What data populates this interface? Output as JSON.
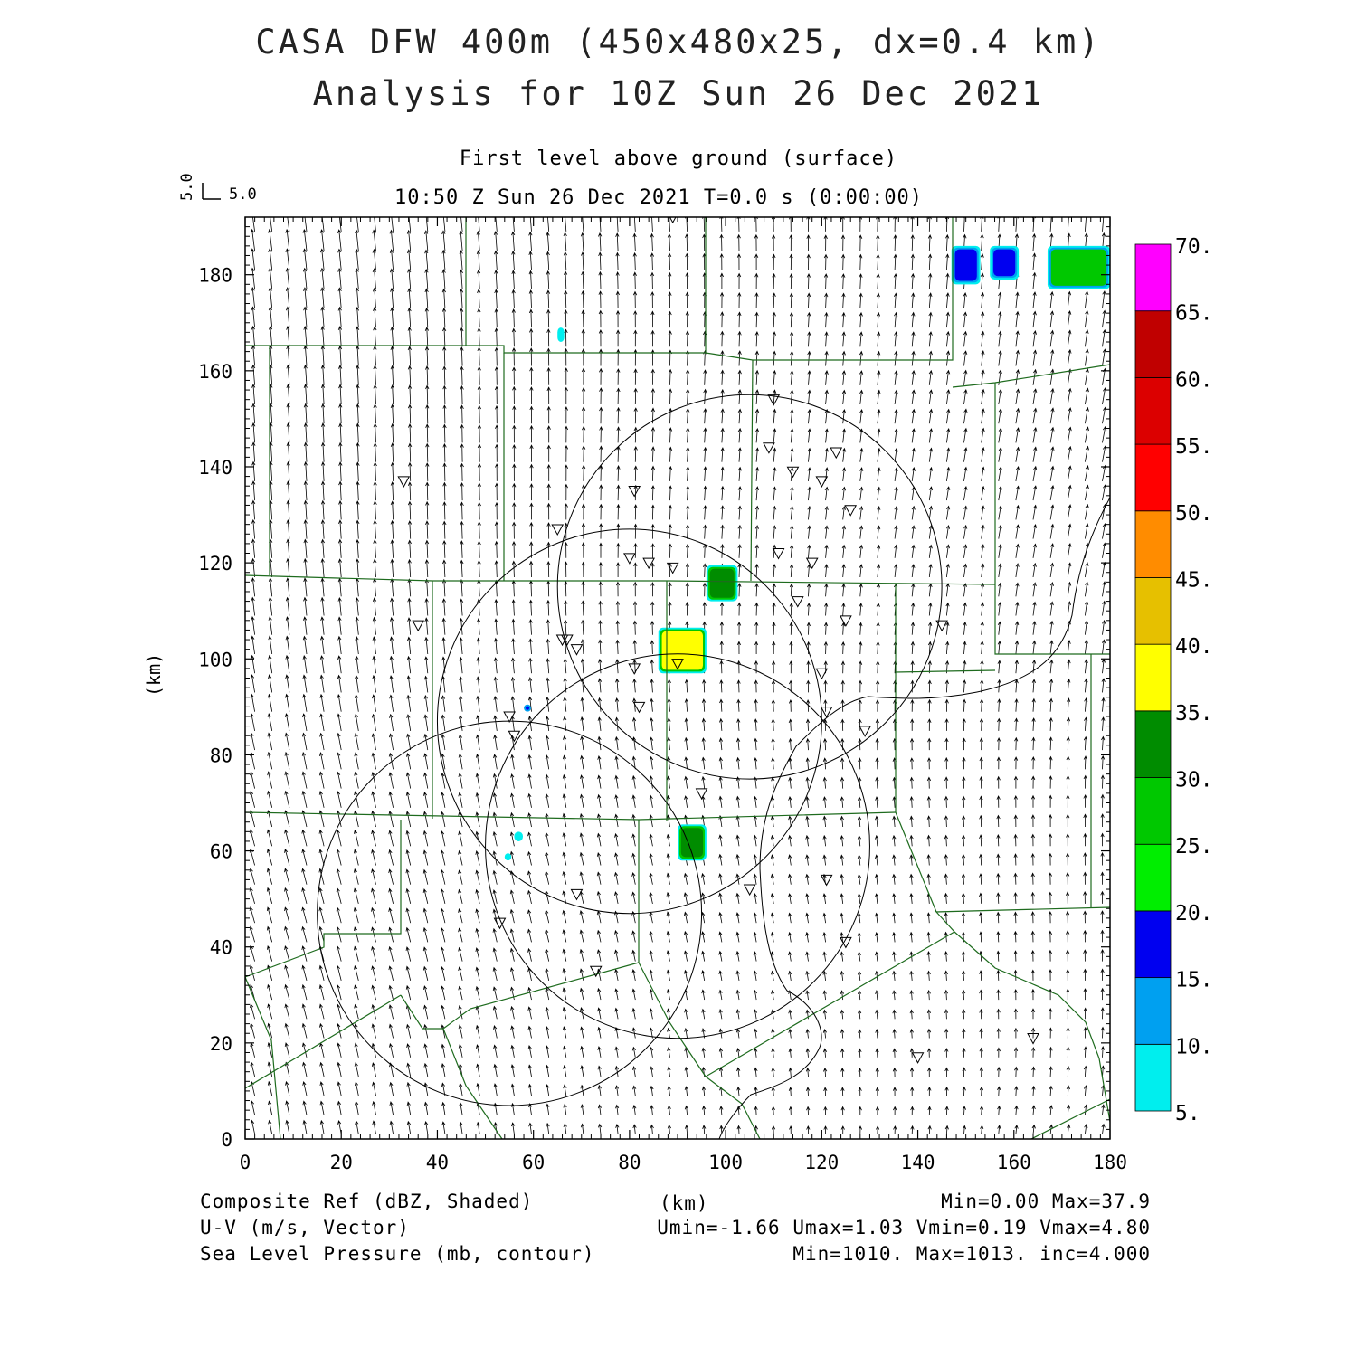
{
  "title": {
    "line1": "CASA DFW 400m (450x480x25, dx=0.4 km)",
    "line2": "Analysis for 10Z Sun 26 Dec 2021"
  },
  "subtitle": "First level above ground (surface)",
  "valid_time": "10:50 Z Sun 26 Dec 2021    T=0.0 s (0:00:00)",
  "reference_vector": {
    "u_label": "5.0",
    "v_label": "5.0"
  },
  "axes": {
    "xlabel": "(km)",
    "ylabel": "(km)",
    "xlim": [
      0,
      180
    ],
    "ylim": [
      0,
      192
    ],
    "x_ticks": [
      "0",
      "20",
      "40",
      "60",
      "80",
      "100",
      "120",
      "140",
      "160",
      "180"
    ],
    "y_ticks": [
      "0",
      "20",
      "40",
      "60",
      "80",
      "100",
      "120",
      "140",
      "160",
      "180"
    ]
  },
  "colorbar": {
    "labels": [
      "5.",
      "10.",
      "15.",
      "20.",
      "25.",
      "30.",
      "35.",
      "40.",
      "45.",
      "50.",
      "55.",
      "60.",
      "65.",
      "70."
    ],
    "colors": [
      "#00eeee",
      "#00a0f0",
      "#0000f0",
      "#00ee00",
      "#00c800",
      "#008c00",
      "#ffff00",
      "#e6c000",
      "#ff8c00",
      "#ff0000",
      "#dc0000",
      "#c00000",
      "#ff00ff"
    ]
  },
  "footer": {
    "left": [
      "Composite Ref (dBZ, Shaded)",
      "U-V (m/s, Vector)",
      "Sea Level Pressure (mb, contour)"
    ],
    "center": "(km)",
    "right": [
      "Min=0.00 Max=37.9",
      "Umin=-1.66 Umax=1.03 Vmin=0.19 Vmax=4.80",
      "Min=1010. Max=1013. inc=4.000"
    ]
  },
  "map": {
    "colors": {
      "county_lines": "#1e6b1e",
      "radar_rings": "#000000",
      "vectors": "#000000"
    },
    "radar_rings_km": [
      {
        "cx": 105,
        "cy": 115,
        "r": 40
      },
      {
        "cx": 80,
        "cy": 87,
        "r": 40
      },
      {
        "cx": 90,
        "cy": 61,
        "r": 40
      },
      {
        "cx": 55,
        "cy": 47,
        "r": 40
      }
    ],
    "stations_km": [
      [
        89,
        192
      ],
      [
        110,
        154
      ],
      [
        109,
        144
      ],
      [
        123,
        143
      ],
      [
        114,
        139
      ],
      [
        120,
        137
      ],
      [
        33,
        137
      ],
      [
        81,
        135
      ],
      [
        126,
        131
      ],
      [
        65,
        127
      ],
      [
        80,
        121
      ],
      [
        84,
        120
      ],
      [
        89,
        119
      ],
      [
        111,
        122
      ],
      [
        118,
        120
      ],
      [
        115,
        112
      ],
      [
        36,
        107
      ],
      [
        66,
        104
      ],
      [
        67,
        104
      ],
      [
        69,
        102
      ],
      [
        125,
        108
      ],
      [
        145,
        107
      ],
      [
        81,
        98
      ],
      [
        90,
        99
      ],
      [
        120,
        97
      ],
      [
        82,
        90
      ],
      [
        121,
        89
      ],
      [
        55,
        88
      ],
      [
        56,
        84
      ],
      [
        129,
        85
      ],
      [
        95,
        72
      ],
      [
        121,
        54
      ],
      [
        105,
        52
      ],
      [
        69,
        51
      ],
      [
        53,
        45
      ],
      [
        125,
        41
      ],
      [
        73,
        35
      ],
      [
        164,
        21
      ],
      [
        140,
        17
      ]
    ],
    "echoes_km": [
      {
        "x": 147,
        "y": 178,
        "w": 6,
        "h": 8,
        "colors": [
          "#00eeee",
          "#00a0f0",
          "#0000f0"
        ]
      },
      {
        "x": 155,
        "y": 179,
        "w": 6,
        "h": 7,
        "colors": [
          "#00eeee",
          "#00a0f0",
          "#0000f0"
        ]
      },
      {
        "x": 167,
        "y": 177,
        "w": 13,
        "h": 9,
        "colors": [
          "#00eeee",
          "#00a0f0",
          "#00c800"
        ]
      },
      {
        "x": 96,
        "y": 112,
        "w": 6.5,
        "h": 7.5,
        "colors": [
          "#00eeee",
          "#00c800",
          "#008c00"
        ]
      },
      {
        "x": 86,
        "y": 97,
        "w": 10,
        "h": 9.5,
        "colors": [
          "#00eeee",
          "#00c800",
          "#ffff00"
        ]
      },
      {
        "x": 90,
        "y": 58,
        "w": 6,
        "h": 7.5,
        "colors": [
          "#00eeee",
          "#00c800",
          "#008c00"
        ]
      },
      {
        "x": 65,
        "y": 166,
        "w": 1.4,
        "h": 3,
        "colors": [
          "#00eeee"
        ]
      },
      {
        "x": 58,
        "y": 89,
        "w": 1.5,
        "h": 1.5,
        "colors": [
          "#00a0f0",
          "#0000f0"
        ]
      },
      {
        "x": 56,
        "y": 62,
        "w": 1.8,
        "h": 2,
        "colors": [
          "#00eeee"
        ]
      },
      {
        "x": 54,
        "y": 58,
        "w": 1.4,
        "h": 1.5,
        "colors": [
          "#00eeee"
        ]
      }
    ]
  }
}
